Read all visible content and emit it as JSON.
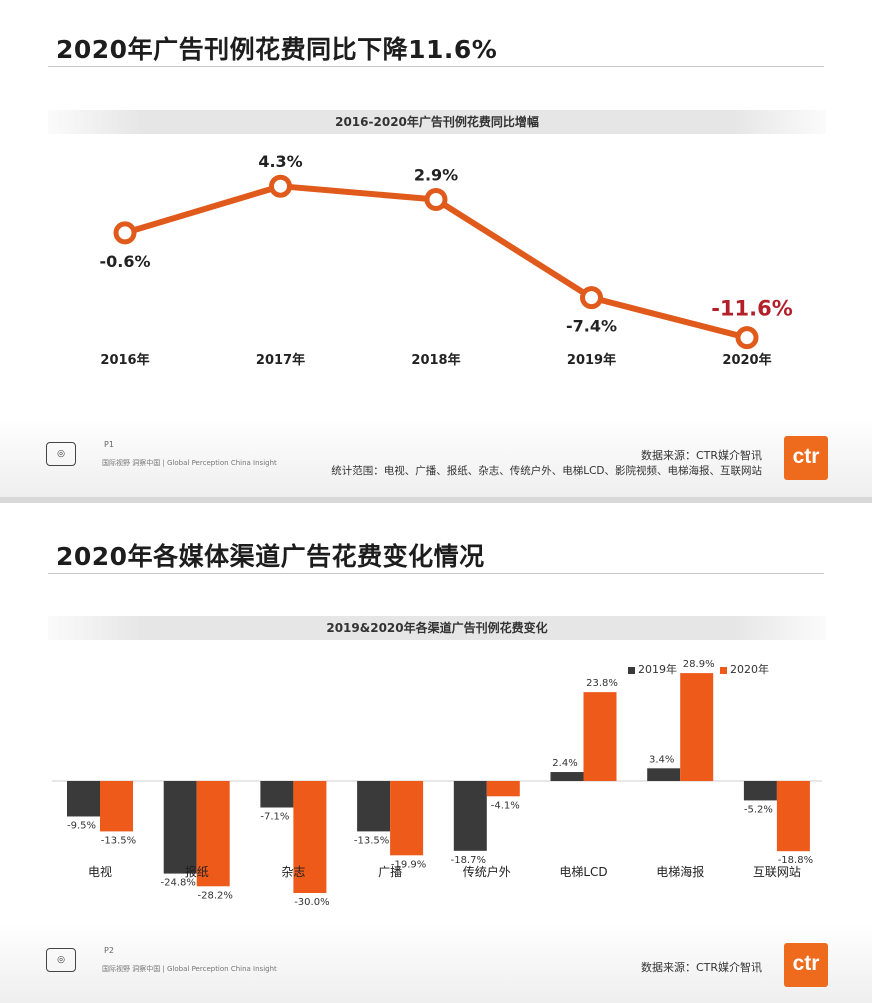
{
  "page1": {
    "title": "2020年广告刊例花费同比下降11.6%",
    "subtitle": "2016-2020年广告刊例花费同比增幅",
    "page_no": "P1",
    "tagline": "国际视野  洞察中国 | Global Perception   China Insight",
    "source": "数据来源：CTR媒介智讯",
    "scope": "统计范围：电视、广播、报纸、杂志、传统户外、电梯LCD、影院视频、电梯海报、互联网站",
    "logo_text": "ctr"
  },
  "page2": {
    "title": "2020年各媒体渠道广告花费变化情况",
    "subtitle": "2019&2020年各渠道广告刊例花费变化",
    "page_no": "P2",
    "tagline": "国际视野  洞察中国 | Global Perception   China Insight",
    "source": "数据来源：CTR媒介智讯",
    "logo_text": "ctr"
  },
  "chart_data": [
    {
      "type": "line",
      "title": "2016-2020年广告刊例花费同比增幅",
      "categories": [
        "2016年",
        "2017年",
        "2018年",
        "2019年",
        "2020年"
      ],
      "values": [
        -0.6,
        4.3,
        2.9,
        -7.4,
        -11.6
      ],
      "labels": [
        "-0.6%",
        "4.3%",
        "2.9%",
        "-7.4%",
        "-11.6%"
      ],
      "highlight_index": 4,
      "ylim": [
        -13,
        6
      ],
      "grid": false,
      "colors": {
        "line": "#e05a1c",
        "highlight_label": "#b3202a"
      }
    },
    {
      "type": "bar",
      "title": "2019&2020年各渠道广告刊例花费变化",
      "categories": [
        "电视",
        "报纸",
        "杂志",
        "广播",
        "传统户外",
        "电梯LCD",
        "电梯海报",
        "互联网站"
      ],
      "series": [
        {
          "name": "2019年",
          "values": [
            -9.5,
            -24.8,
            -7.1,
            -13.5,
            -18.7,
            2.4,
            3.4,
            -5.2
          ],
          "labels": [
            "-9.5%",
            "-24.8%",
            "-7.1%",
            "-13.5%",
            "-18.7%",
            "2.4%",
            "3.4%",
            "-5.2%"
          ],
          "color": "#3a3a3a"
        },
        {
          "name": "2020年",
          "values": [
            -13.5,
            -28.2,
            -30.0,
            -19.9,
            -4.1,
            23.8,
            28.9,
            -18.8
          ],
          "labels": [
            "-13.5%",
            "-28.2%",
            "-30.0%",
            "-19.9%",
            "-4.1%",
            "23.8%",
            "28.9%",
            "-18.8%"
          ],
          "color": "#ee5a1a"
        }
      ],
      "ylim": [
        -30,
        30
      ],
      "grid": false,
      "legend": "top-right"
    }
  ]
}
